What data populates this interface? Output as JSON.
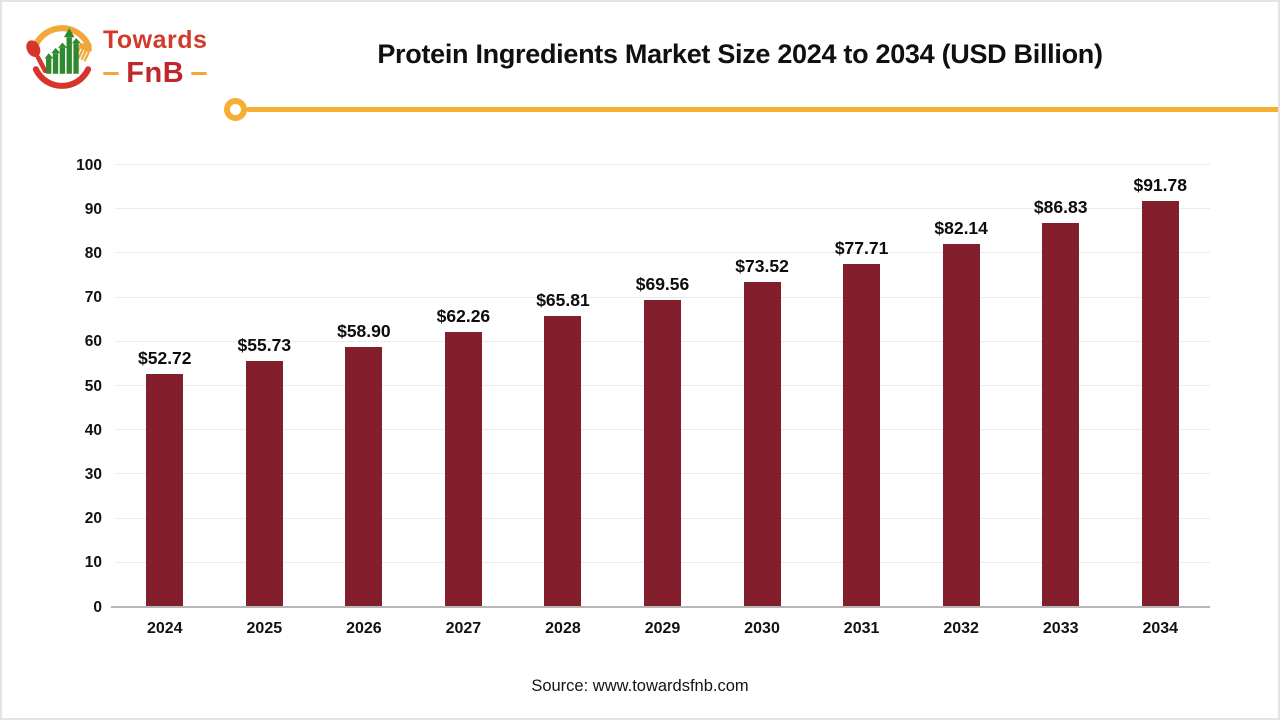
{
  "brand": {
    "name_top": "Towards",
    "name_bottom": "FnB",
    "logo_icon": "spoon-fork-growth-chart-icon"
  },
  "header": {
    "title": "Protein Ingredients Market Size 2024 to 2034 (USD Billion)"
  },
  "footer": {
    "source": "Source: www.towardsfnb.com"
  },
  "colors": {
    "bar": "#831e2c",
    "accent_yellow": "#f6af33",
    "brand_red": "#d23a2b",
    "brand_dark_red": "#c0272d",
    "logo_red": "#d7352b",
    "logo_yellow": "#f2a73b",
    "logo_green": "#2f8a2f",
    "gridline": "#ebebeb",
    "axis_line": "#b7b7b7",
    "text": "#141414"
  },
  "chart_data": {
    "type": "bar",
    "title": "Protein Ingredients Market Size 2024 to 2034 (USD Billion)",
    "unit": "USD Billion",
    "categories": [
      "2024",
      "2025",
      "2026",
      "2027",
      "2028",
      "2029",
      "2030",
      "2031",
      "2032",
      "2033",
      "2034"
    ],
    "values": [
      52.72,
      55.73,
      58.9,
      62.26,
      65.81,
      69.56,
      73.52,
      77.71,
      82.14,
      86.83,
      91.78
    ],
    "value_labels": [
      "$52.72",
      "$55.73",
      "$58.90",
      "$62.26",
      "$65.81",
      "$69.56",
      "$73.52",
      "$77.71",
      "$82.14",
      "$86.83",
      "$91.78"
    ],
    "ylim": [
      0,
      100
    ],
    "yticks": [
      0,
      10,
      20,
      30,
      40,
      50,
      60,
      70,
      80,
      90,
      100
    ],
    "grid": true,
    "legend": false,
    "bar_color": "#831e2c"
  }
}
